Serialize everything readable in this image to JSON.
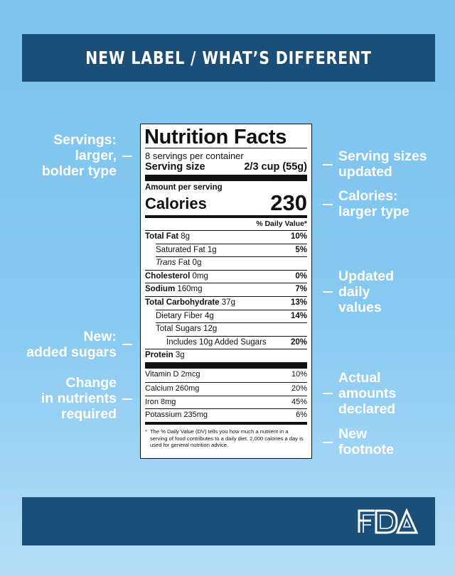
{
  "header": {
    "title": "NEW LABEL / WHAT’S DIFFERENT"
  },
  "callouts": {
    "left": [
      {
        "lines": [
          "Servings:",
          "larger,",
          "bolder type"
        ]
      },
      {
        "lines": [
          "New:",
          "added sugars"
        ]
      },
      {
        "lines": [
          "Change",
          "in nutrients",
          "required"
        ]
      }
    ],
    "right": [
      {
        "lines": [
          "Serving sizes",
          "updated"
        ]
      },
      {
        "lines": [
          "Calories:",
          "larger type"
        ]
      },
      {
        "lines": [
          "Updated",
          "daily",
          "values"
        ]
      },
      {
        "lines": [
          "Actual",
          "amounts",
          "declared"
        ]
      },
      {
        "lines": [
          "New",
          "footnote"
        ]
      }
    ]
  },
  "label": {
    "title": "Nutrition Facts",
    "servings_per_container": "8 servings per container",
    "serving_size_label": "Serving size",
    "serving_size_value": "2/3 cup (55g)",
    "amount_per_serving": "Amount per serving",
    "calories_label": "Calories",
    "calories_value": "230",
    "dv_header": "% Daily Value*",
    "nutrients": {
      "total_fat": {
        "name": "Total Fat",
        "amount": "8g",
        "pct": "10%"
      },
      "saturated_fat": {
        "name": "Saturated Fat 1g",
        "pct": "5%"
      },
      "trans_fat": {
        "name_italic": "Trans",
        "name": "Fat 0g"
      },
      "cholesterol": {
        "name": "Cholesterol",
        "amount": "0mg",
        "pct": "0%"
      },
      "sodium": {
        "name": "Sodium",
        "amount": "160mg",
        "pct": "7%"
      },
      "total_carb": {
        "name": "Total Carbohydrate",
        "amount": "37g",
        "pct": "13%"
      },
      "fiber": {
        "name": "Dietary Fiber 4g",
        "pct": "14%"
      },
      "total_sugars": {
        "name": "Total Sugars 12g"
      },
      "added_sugars": {
        "name": "Includes 10g Added Sugars",
        "pct": "20%"
      },
      "protein": {
        "name": "Protein",
        "amount": "3g"
      }
    },
    "vitamins": [
      {
        "name": "Vitamin D 2mcg",
        "pct": "10%"
      },
      {
        "name": "Calcium 260mg",
        "pct": "20%"
      },
      {
        "name": "Iron 8mg",
        "pct": "45%"
      },
      {
        "name": "Potassium 235mg",
        "pct": "6%"
      }
    ],
    "footnote_star": "*",
    "footnote": "The % Daily Value (DV) tells you how much a nutrient in a serving of food contributes to a daily diet. 2,000 calories a day is used for general nutrition advice."
  },
  "footer": {
    "logo_text": "FDA"
  },
  "colors": {
    "banner": "#1b4f78",
    "background": "#7cc3ee",
    "text_light": "#ffffff"
  }
}
